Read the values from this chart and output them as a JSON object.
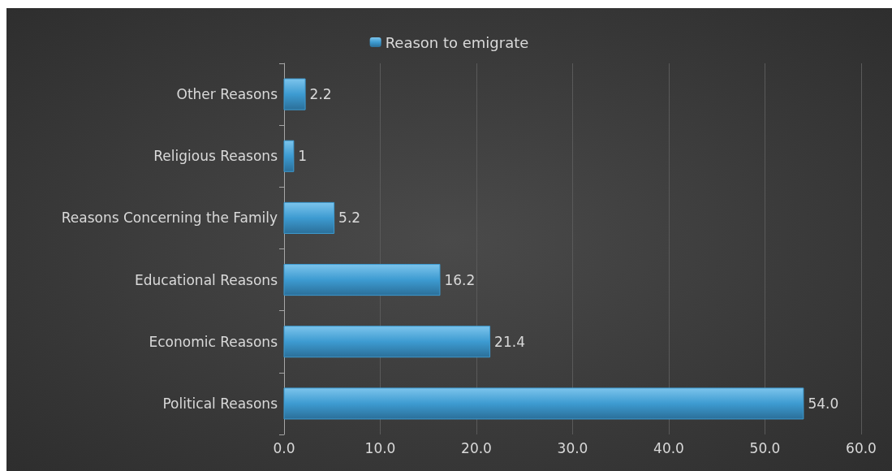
{
  "chart_data": {
    "type": "bar",
    "orientation": "horizontal",
    "categories": [
      "Other Reasons",
      "Religious Reasons",
      "Reasons Concerning the Family",
      "Educational Reasons",
      "Economic Reasons",
      "Political Reasons"
    ],
    "series": [
      {
        "name": "Reason to emigrate",
        "color": "#3d9bd1",
        "values": [
          2.2,
          1,
          5.2,
          16.2,
          21.4,
          54.0
        ],
        "value_labels": [
          "2.2",
          "1",
          "5.2",
          "16.2",
          "21.4",
          "54.0"
        ]
      }
    ],
    "xlim": [
      0,
      60
    ],
    "xticks": [
      {
        "value": 0,
        "label": "0.0"
      },
      {
        "value": 10,
        "label": "10.0"
      },
      {
        "value": 20,
        "label": "20.0"
      },
      {
        "value": 30,
        "label": "30.0"
      },
      {
        "value": 40,
        "label": "40.0"
      },
      {
        "value": 50,
        "label": "50.0"
      },
      {
        "value": 60,
        "label": "60.0"
      }
    ],
    "grid": "x",
    "legend": "top"
  }
}
